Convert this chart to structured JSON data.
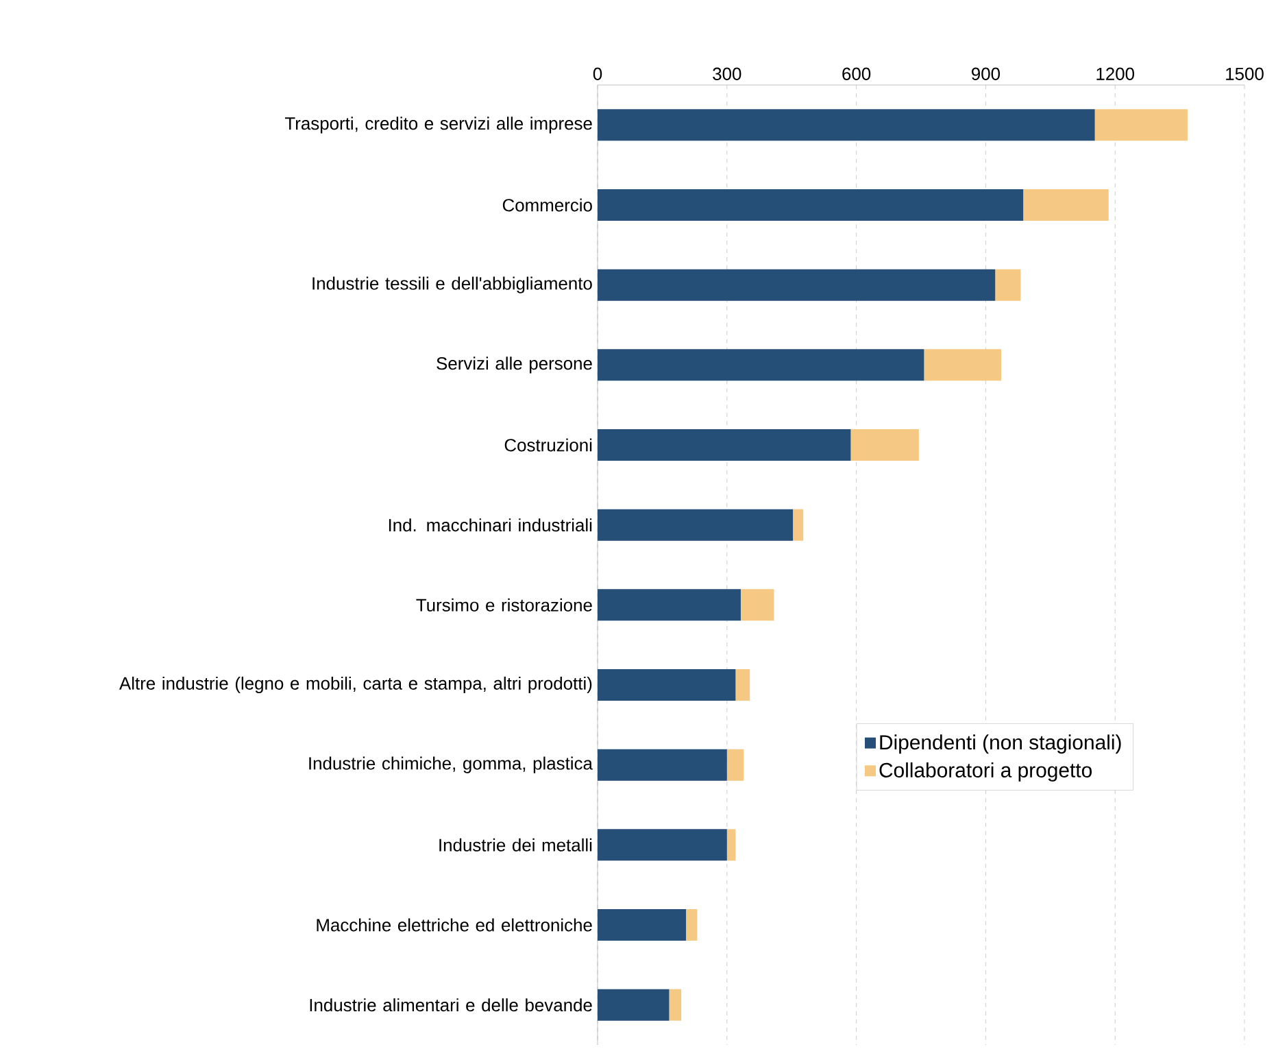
{
  "chart_data": {
    "type": "bar",
    "orientation": "horizontal",
    "stacked": true,
    "categories": [
      "Trasporti, credito e servizi alle imprese",
      "Commercio",
      "Industrie tessili e dell'abbigliamento",
      "Servizi alle persone",
      "Costruzioni",
      "Ind. macchinari industriali",
      "Tursimo e ristorazione",
      "Altre industrie (legno e mobili, carta e stampa, altri prodotti)",
      "Industrie chimiche, gomma, plastica",
      "Industrie dei metalli",
      "Macchine elettriche ed elettroniche",
      "Industrie alimentari e delle bevande"
    ],
    "series": [
      {
        "name": "Dipendenti (non stagionali)",
        "color": "#264f78",
        "values": [
          1153,
          987,
          922,
          757,
          587,
          453,
          332,
          320,
          300,
          300,
          205,
          166
        ]
      },
      {
        "name": "Collaboratori a progetto",
        "color": "#f5c983",
        "values": [
          215,
          198,
          59,
          179,
          158,
          24,
          77,
          33,
          39,
          20,
          26,
          28
        ]
      }
    ],
    "xlim": [
      0,
      1500
    ],
    "xticks": [
      0,
      300,
      600,
      900,
      1200,
      1500
    ],
    "grid": "x",
    "legend": "right"
  }
}
